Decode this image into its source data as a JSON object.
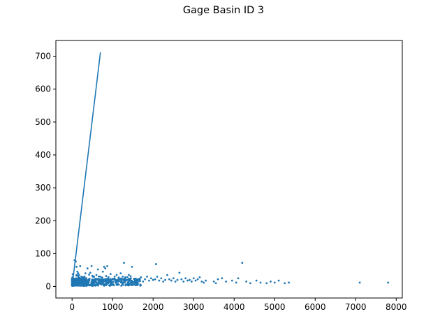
{
  "chart_data": {
    "type": "scatter",
    "title": "Gage Basin ID 3",
    "xlabel": "",
    "ylabel": "",
    "xlim": [
      -400,
      8150
    ],
    "ylim": [
      -35,
      748
    ],
    "xticks": [
      0,
      1000,
      2000,
      3000,
      4000,
      5000,
      6000,
      7000,
      8000
    ],
    "yticks": [
      0,
      100,
      200,
      300,
      400,
      500,
      600,
      700
    ],
    "grid": false,
    "legend": "none",
    "color": "#1f77b4",
    "series": [
      {
        "kind": "line",
        "x": [
          0,
          700
        ],
        "y": [
          0,
          712
        ]
      },
      {
        "kind": "scatter",
        "points": [
          [
            60,
            80
          ],
          [
            90,
            76
          ],
          [
            110,
            60
          ],
          [
            130,
            45
          ],
          [
            150,
            40
          ],
          [
            170,
            35
          ],
          [
            200,
            62
          ],
          [
            230,
            30
          ],
          [
            260,
            28
          ],
          [
            300,
            25
          ],
          [
            330,
            40
          ],
          [
            380,
            55
          ],
          [
            420,
            36
          ],
          [
            450,
            42
          ],
          [
            480,
            62
          ],
          [
            510,
            30
          ],
          [
            550,
            22
          ],
          [
            600,
            35
          ],
          [
            640,
            52
          ],
          [
            700,
            30
          ],
          [
            760,
            45
          ],
          [
            790,
            60
          ],
          [
            820,
            55
          ],
          [
            870,
            62
          ],
          [
            900,
            28
          ],
          [
            950,
            38
          ],
          [
            1000,
            22
          ],
          [
            1050,
            30
          ],
          [
            1100,
            35
          ],
          [
            1150,
            25
          ],
          [
            1200,
            40
          ],
          [
            1250,
            30
          ],
          [
            1280,
            72
          ],
          [
            1320,
            20
          ],
          [
            1400,
            35
          ],
          [
            1450,
            25
          ],
          [
            1480,
            60
          ],
          [
            1550,
            18
          ],
          [
            1600,
            22
          ],
          [
            1650,
            20
          ],
          [
            1700,
            28
          ],
          [
            1750,
            15
          ],
          [
            1800,
            22
          ],
          [
            1850,
            30
          ],
          [
            1900,
            18
          ],
          [
            1950,
            25
          ],
          [
            2000,
            20
          ],
          [
            2050,
            22
          ],
          [
            2070,
            68
          ],
          [
            2100,
            30
          ],
          [
            2150,
            18
          ],
          [
            2200,
            25
          ],
          [
            2250,
            15
          ],
          [
            2300,
            20
          ],
          [
            2350,
            35
          ],
          [
            2400,
            22
          ],
          [
            2450,
            18
          ],
          [
            2500,
            25
          ],
          [
            2550,
            15
          ],
          [
            2600,
            20
          ],
          [
            2650,
            42
          ],
          [
            2700,
            22
          ],
          [
            2750,
            15
          ],
          [
            2800,
            25
          ],
          [
            2850,
            18
          ],
          [
            2900,
            20
          ],
          [
            2950,
            15
          ],
          [
            3000,
            25
          ],
          [
            3050,
            18
          ],
          [
            3100,
            22
          ],
          [
            3150,
            28
          ],
          [
            3200,
            15
          ],
          [
            3250,
            12
          ],
          [
            3300,
            18
          ],
          [
            3500,
            15
          ],
          [
            3550,
            10
          ],
          [
            3600,
            22
          ],
          [
            3700,
            25
          ],
          [
            3800,
            15
          ],
          [
            3950,
            18
          ],
          [
            4050,
            12
          ],
          [
            4100,
            25
          ],
          [
            4200,
            72
          ],
          [
            4300,
            15
          ],
          [
            4400,
            10
          ],
          [
            4550,
            18
          ],
          [
            4650,
            12
          ],
          [
            4800,
            10
          ],
          [
            4900,
            15
          ],
          [
            5000,
            12
          ],
          [
            5100,
            18
          ],
          [
            5250,
            10
          ],
          [
            5350,
            12
          ],
          [
            7100,
            12
          ],
          [
            7800,
            12
          ]
        ]
      }
    ]
  }
}
